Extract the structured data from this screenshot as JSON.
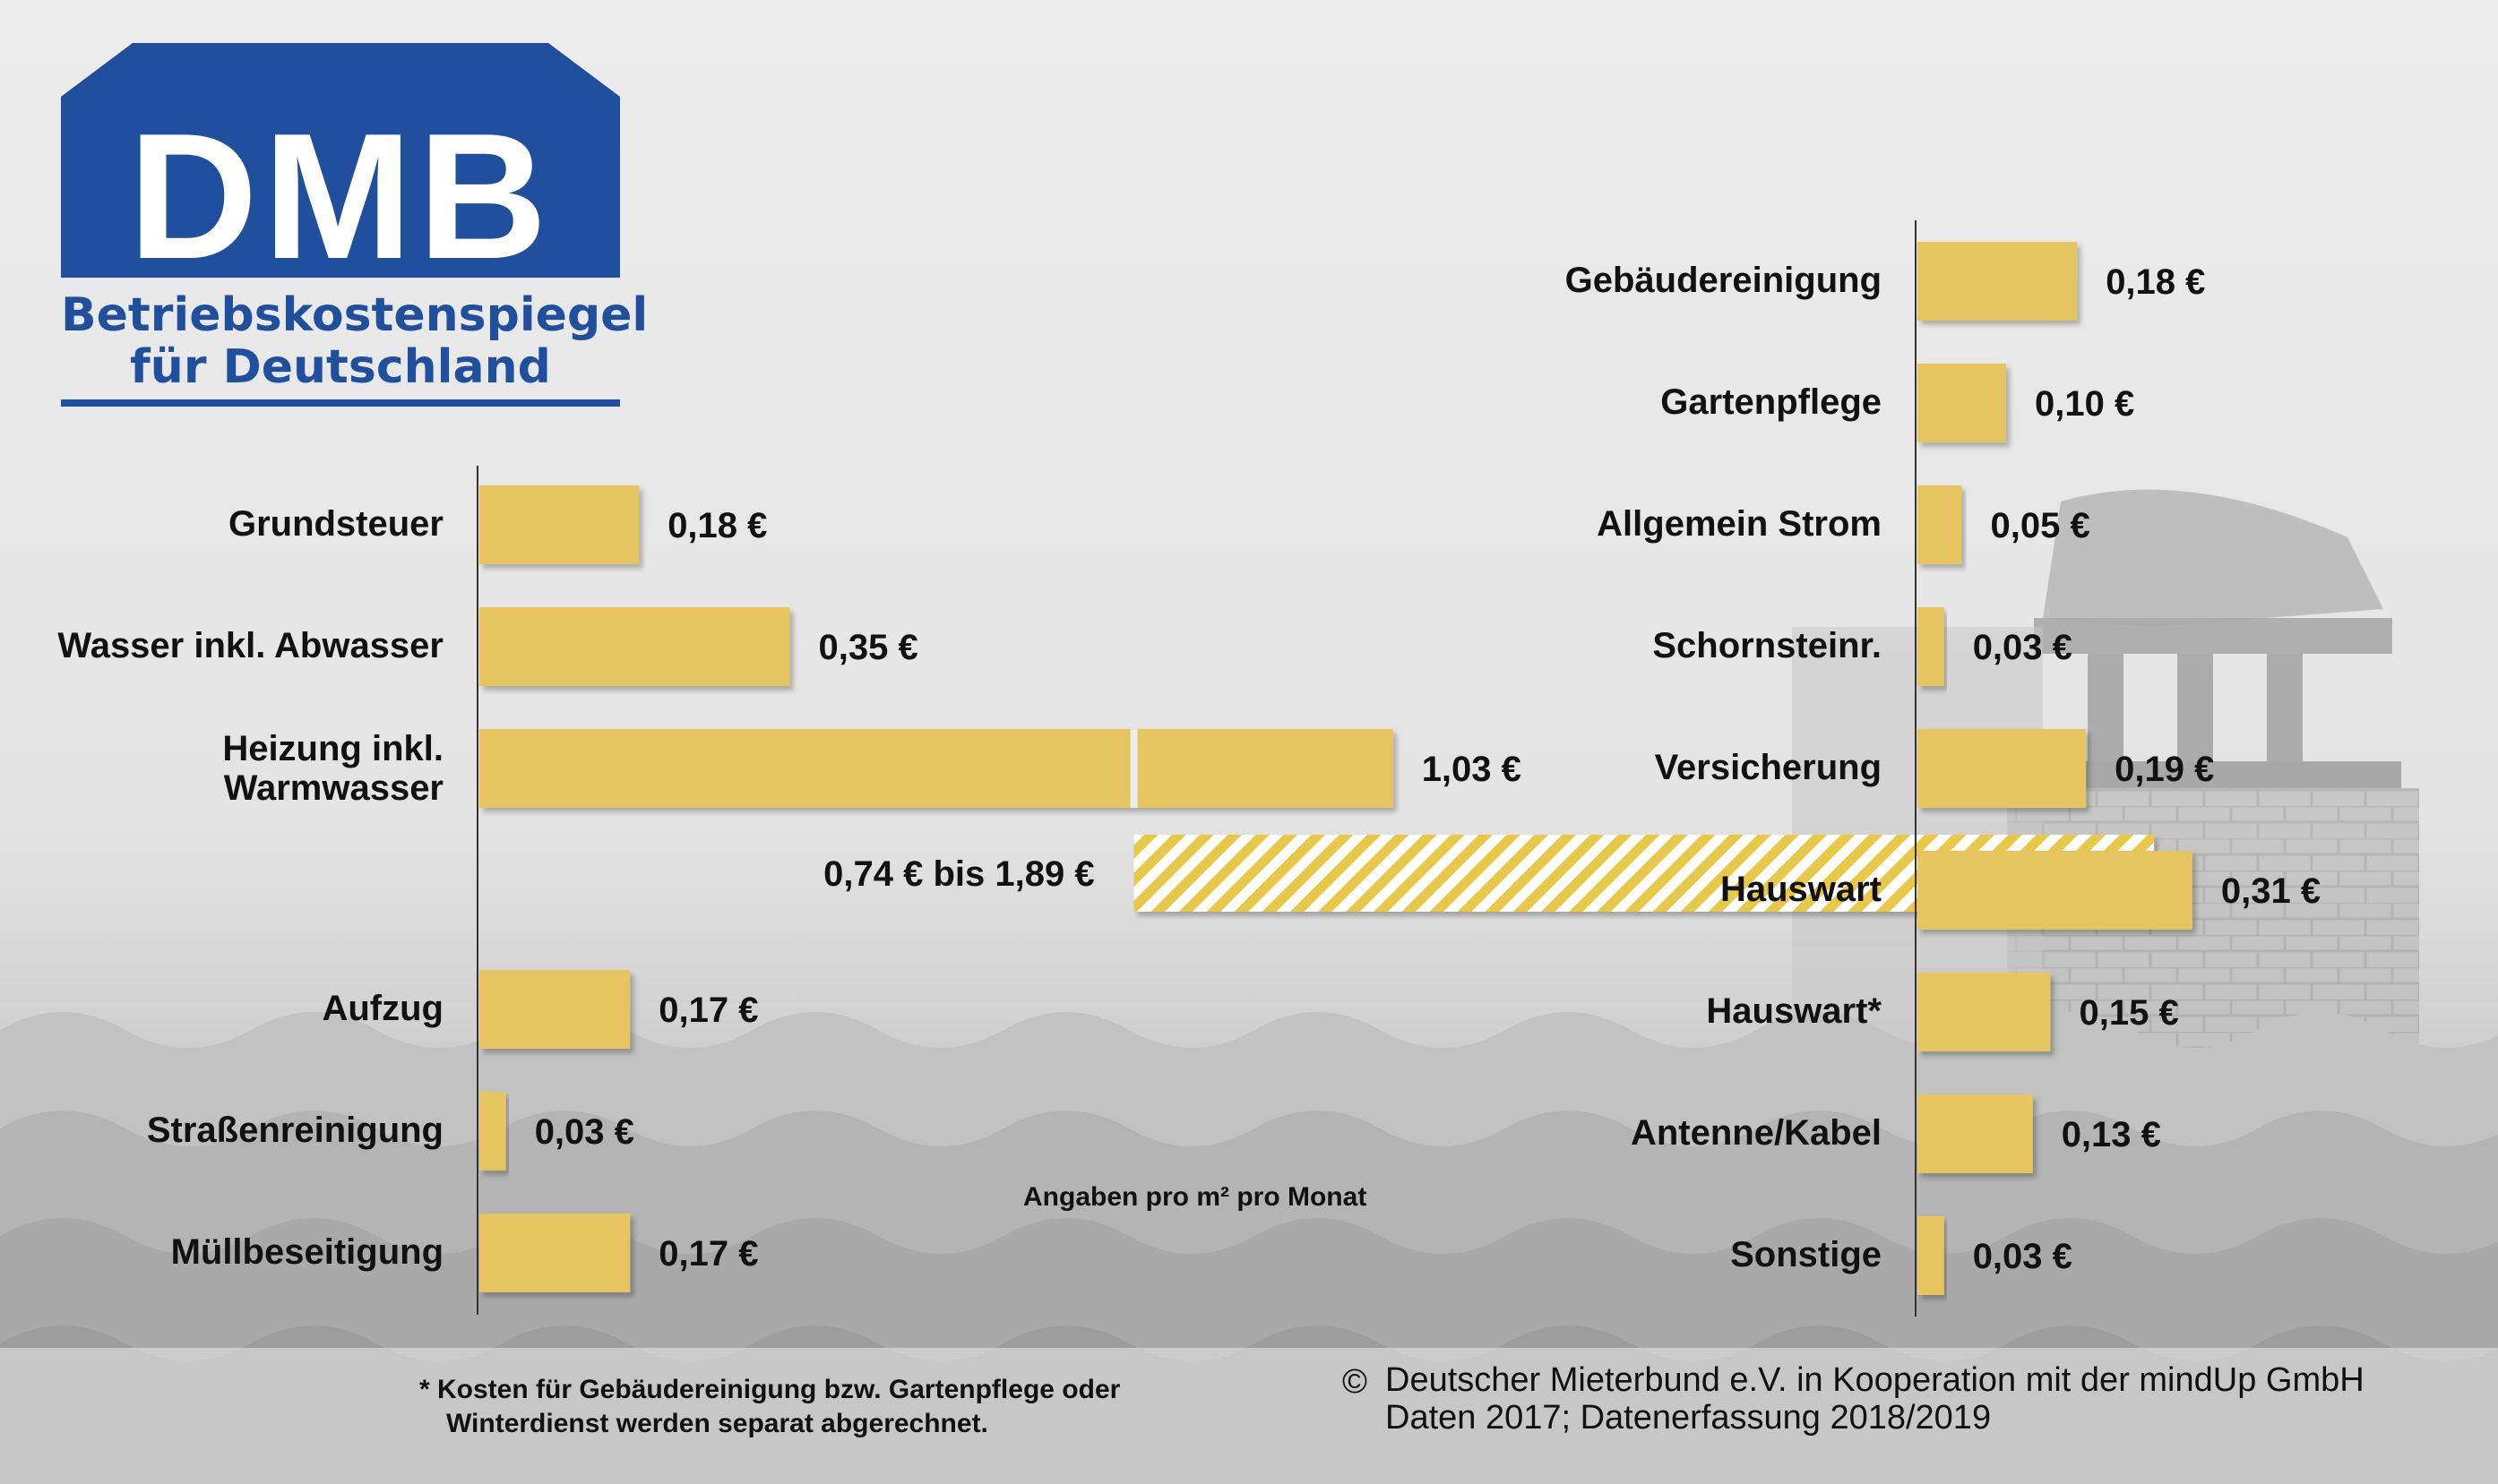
{
  "logo": {
    "letters": "DMB",
    "line1": "Betriebskostenspiegel",
    "line2": "für Deutschland"
  },
  "chart_data": {
    "type": "bar",
    "orientation": "horizontal",
    "unit": "€",
    "note": "Angaben pro m² pro Monat",
    "colors": {
      "bar": "#e6c560",
      "range_hatch": "#e8c84a",
      "axis": "#333333",
      "brand": "#1f4f9d"
    },
    "left": {
      "items": [
        {
          "label": "Grundsteuer",
          "value": 0.18,
          "value_label": "0,18 €"
        },
        {
          "label": "Wasser inkl. Abwasser",
          "value": 0.35,
          "value_label": "0,35 €"
        },
        {
          "label": "Heizung inkl.\nWarmwasser",
          "value": 1.03,
          "value_label": "1,03 €",
          "range": {
            "from": 0.74,
            "to": 1.89,
            "label": "0,74 € bis 1,89 €"
          }
        },
        {
          "label": "Aufzug",
          "value": 0.17,
          "value_label": "0,17 €"
        },
        {
          "label": "Straßenreinigung",
          "value": 0.03,
          "value_label": "0,03 €"
        },
        {
          "label": "Müllbeseitigung",
          "value": 0.17,
          "value_label": "0,17 €"
        }
      ]
    },
    "right": {
      "items": [
        {
          "label": "Gebäudereinigung",
          "value": 0.18,
          "value_label": "0,18 €"
        },
        {
          "label": "Gartenpflege",
          "value": 0.1,
          "value_label": "0,10 €"
        },
        {
          "label": "Allgemein Strom",
          "value": 0.05,
          "value_label": "0,05 €"
        },
        {
          "label": "Schornsteinr.",
          "value": 0.03,
          "value_label": "0,03 €"
        },
        {
          "label": "Versicherung",
          "value": 0.19,
          "value_label": "0,19 €"
        },
        {
          "label": "Hauswart",
          "value": 0.31,
          "value_label": "0,31 €"
        },
        {
          "label": "Hauswart*",
          "value": 0.15,
          "value_label": "0,15 €"
        },
        {
          "label": "Antenne/Kabel",
          "value": 0.13,
          "value_label": "0,13 €"
        },
        {
          "label": "Sonstige",
          "value": 0.03,
          "value_label": "0,03 €"
        }
      ]
    }
  },
  "footnote": {
    "line1": "* Kosten für Gebäudereinigung bzw. Gartenpflege oder",
    "line2": "Winterdienst werden separat abgerechnet."
  },
  "copyright": {
    "symbol": "©",
    "line1": "Deutscher Mieterbund e.V. in Kooperation mit der mindUp GmbH",
    "line2": "Daten 2017; Datenerfassung 2018/2019"
  }
}
